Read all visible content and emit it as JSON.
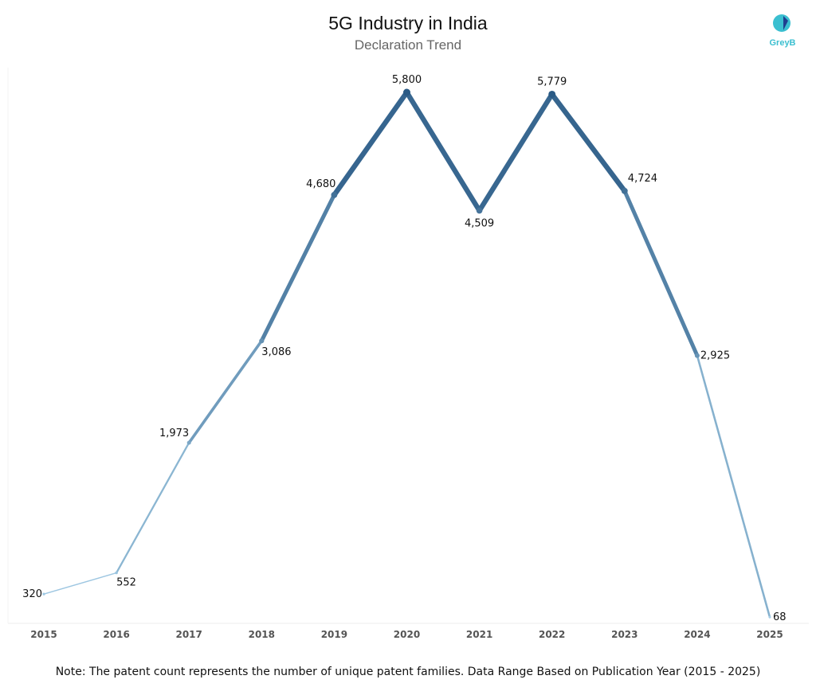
{
  "logo": {
    "text": "GreyB"
  },
  "chart_data": {
    "type": "line",
    "title": "5G Industry in India",
    "subtitle": "Declaration Trend",
    "categories": [
      "2015",
      "2016",
      "2017",
      "2018",
      "2019",
      "2020",
      "2021",
      "2022",
      "2023",
      "2024",
      "2025"
    ],
    "values": [
      320,
      552,
      1973,
      3086,
      4680,
      5800,
      4509,
      5779,
      4724,
      2925,
      68
    ],
    "data_labels": [
      "320",
      "552",
      "1,973",
      "3,086",
      "4,680",
      "5,800",
      "4,509",
      "5,779",
      "4,724",
      "2,925",
      "68"
    ],
    "xlabel": "",
    "ylabel": "",
    "ylim": [
      0,
      6070
    ],
    "y_axis_visible": false,
    "grid": false,
    "color_low": "#a6cfe8",
    "color_high": "#2a5a85"
  },
  "note": "Note: The patent count represents the number of unique patent families. Data Range Based on Publication Year (2015 - 2025)"
}
